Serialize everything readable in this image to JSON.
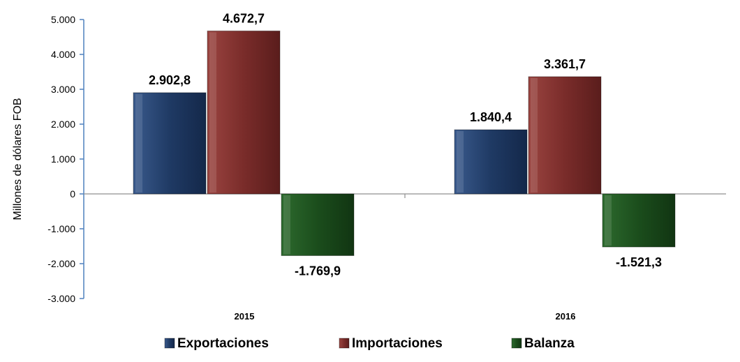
{
  "chart_data": {
    "type": "bar",
    "title": "",
    "xlabel": "",
    "ylabel": "Millones de dólares FOB",
    "categories": [
      "2015",
      "2016"
    ],
    "series": [
      {
        "name": "Exportaciones",
        "values": [
          2902.8,
          1840.4
        ],
        "labels": [
          "2.902,8",
          "1.840,4"
        ],
        "color": "#1f3a64"
      },
      {
        "name": "Importaciones",
        "values": [
          4672.7,
          3361.7
        ],
        "labels": [
          "4.672,7",
          "3.361,7"
        ],
        "color": "#7a2c2a"
      },
      {
        "name": "Balanza",
        "values": [
          -1769.9,
          -1521.3
        ],
        "labels": [
          "-1.769,9",
          "-1.521,3"
        ],
        "color": "#1b4d1c"
      }
    ],
    "ylim": [
      -3000,
      5000
    ],
    "yticks": [
      5000,
      4000,
      3000,
      2000,
      1000,
      0,
      -1000,
      -2000,
      -3000
    ],
    "ytick_labels": [
      "5.000",
      "4.000",
      "3.000",
      "2.000",
      "1.000",
      "0",
      "-1.000",
      "-2.000",
      "-3.000"
    ],
    "legend_position": "bottom",
    "grid": false,
    "axis_color": "#4f81bd"
  }
}
